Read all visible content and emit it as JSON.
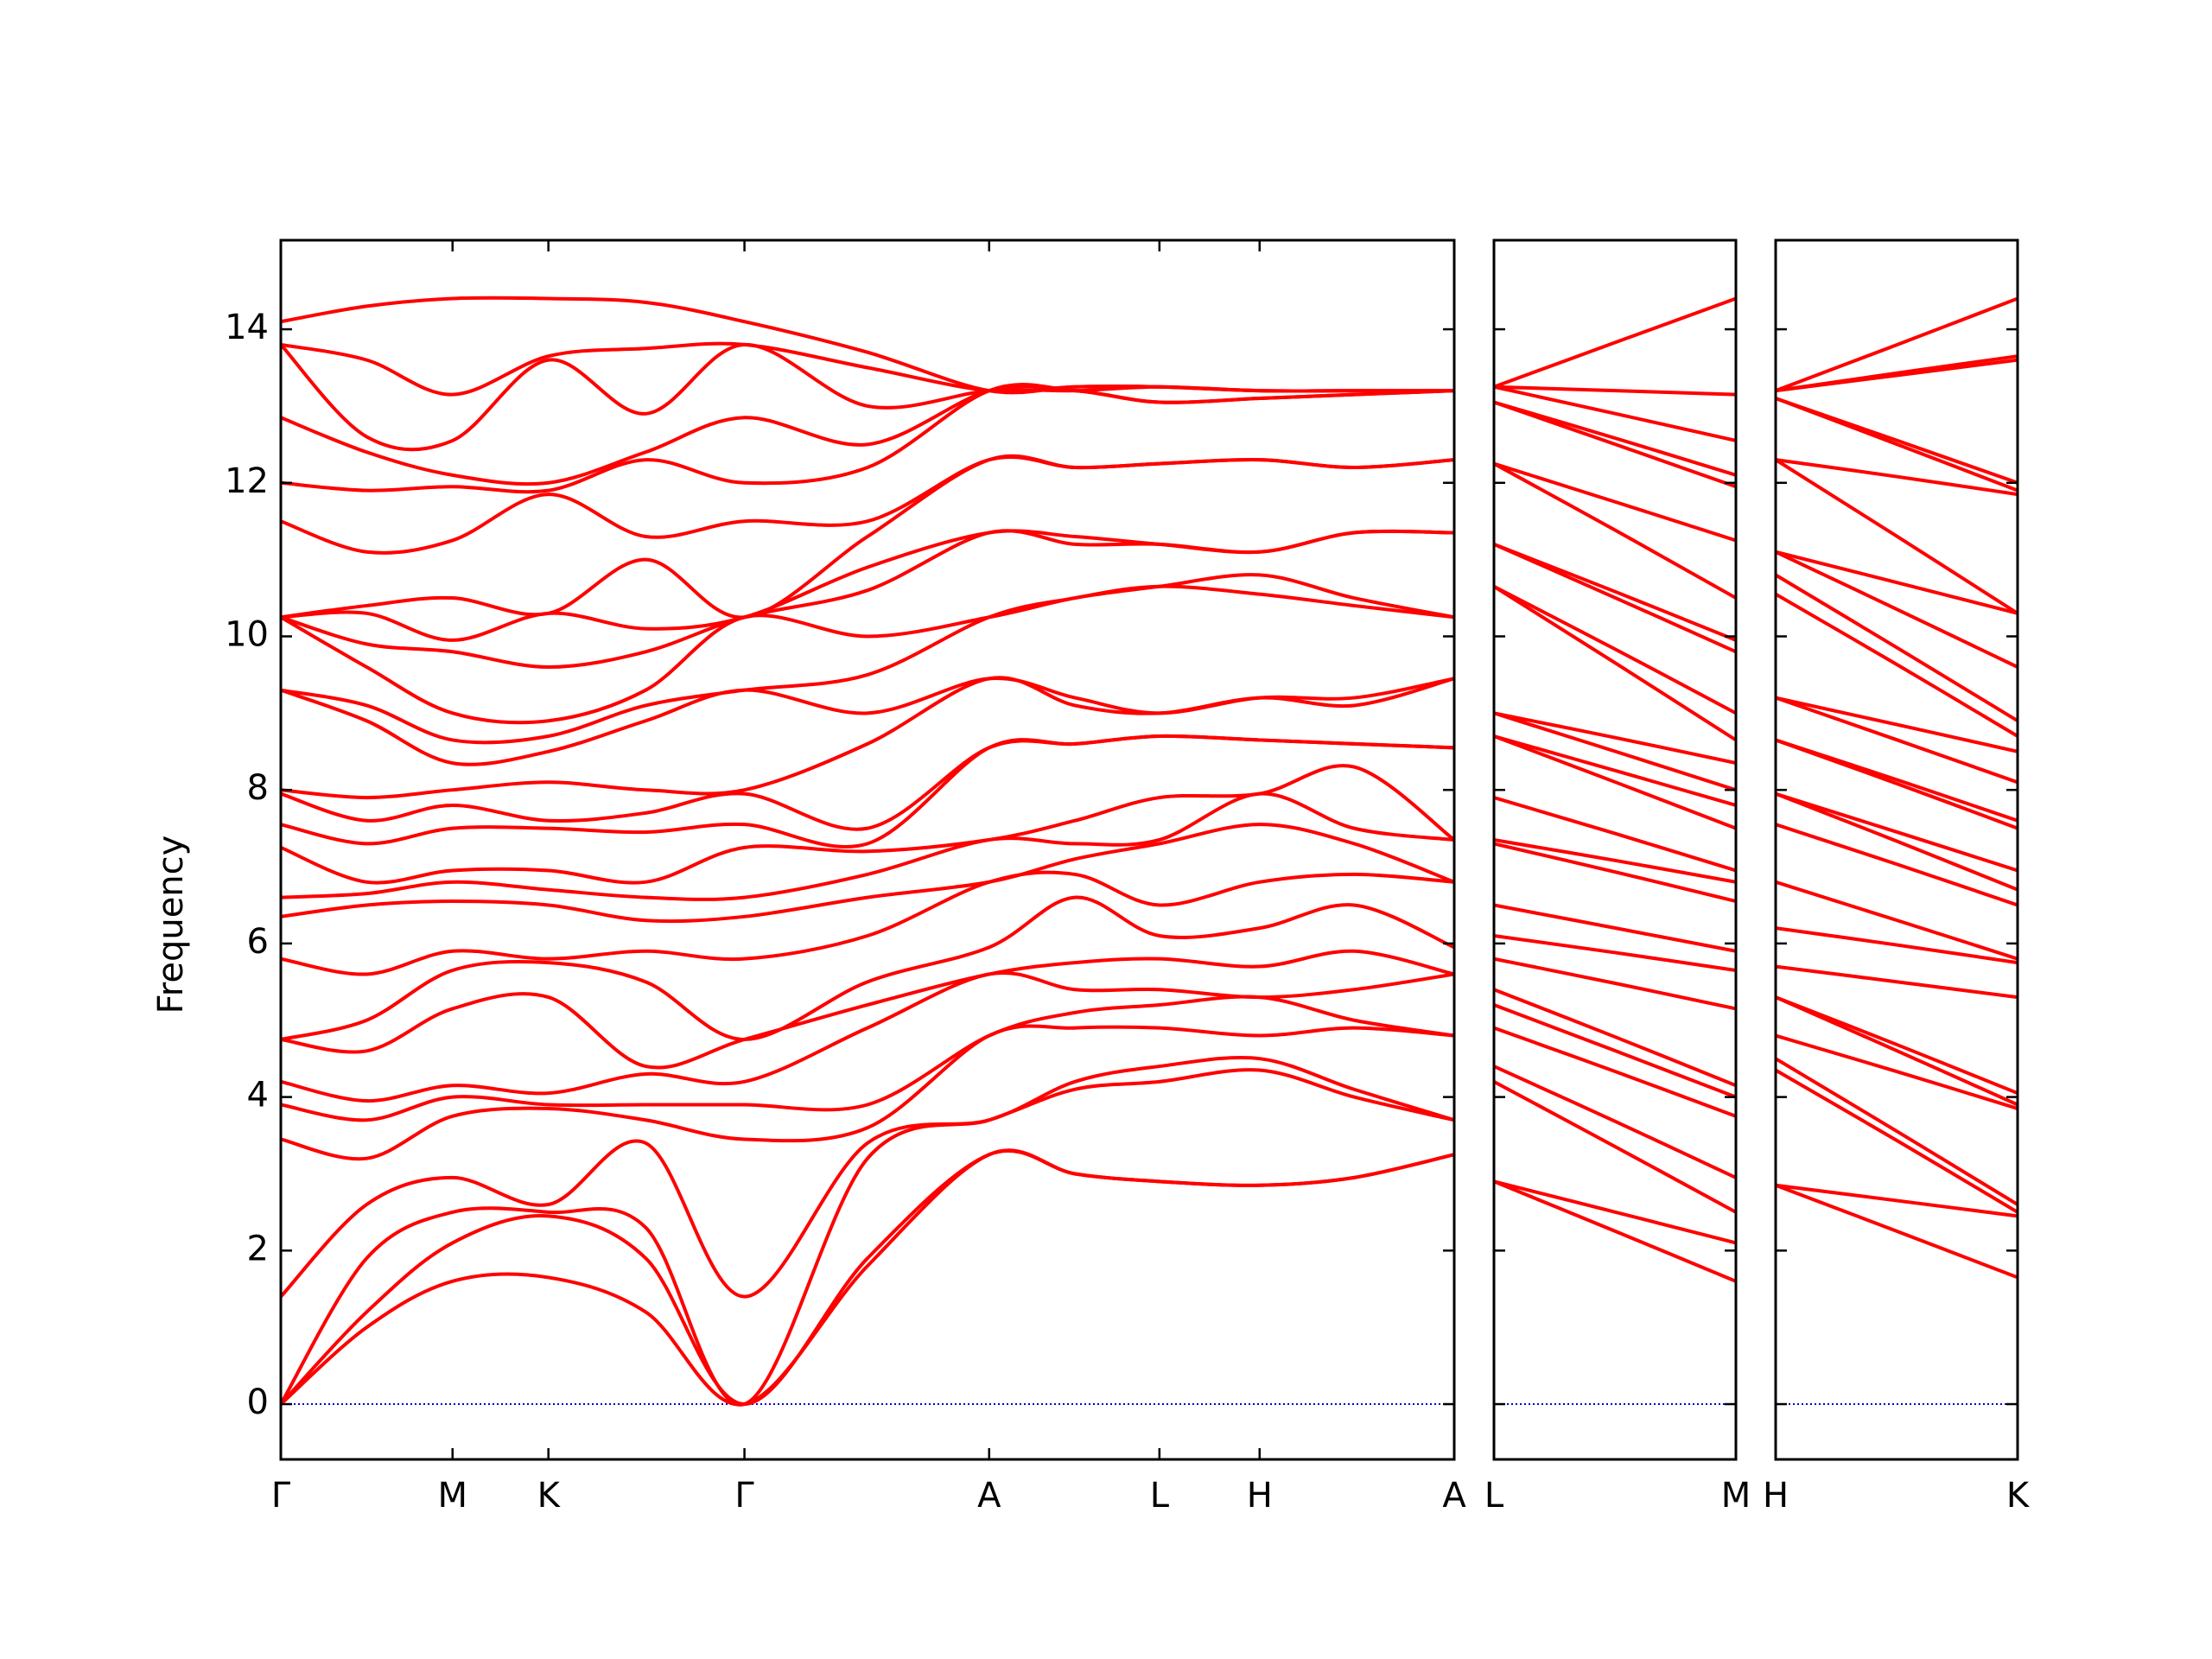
{
  "chart_data": [
    {
      "type": "line",
      "y_label": "Frequency",
      "color": "#ff0000",
      "zero_line_color": "#0000cc",
      "xlim": [
        0,
        8.2
      ],
      "xticks": [
        {
          "value": 0,
          "label": "Γ"
        },
        {
          "value": 1.2,
          "label": "M"
        },
        {
          "value": 1.87,
          "label": "K"
        },
        {
          "value": 3.24,
          "label": "Γ"
        },
        {
          "value": 4.95,
          "label": "A"
        },
        {
          "value": 6.14,
          "label": "L"
        },
        {
          "value": 6.84,
          "label": "H"
        },
        {
          "value": 8.2,
          "label": "A"
        }
      ],
      "ylim": [
        -0.72,
        15.16
      ],
      "yticks": [
        0,
        2,
        4,
        6,
        8,
        10,
        12,
        14
      ],
      "x": [
        0,
        0.6,
        1.2,
        1.87,
        2.55,
        3.24,
        4.1,
        4.95,
        5.55,
        6.14,
        6.84,
        7.5,
        8.2
      ],
      "frequencies": [
        [
          0,
          0,
          0,
          1.4,
          3.45,
          3.9,
          4.2,
          4.75,
          4.75,
          5.8,
          6.35,
          6.6,
          7.25,
          7.55,
          7.95,
          8.0,
          9.3,
          9.3,
          10.25,
          10.25,
          10.25,
          10.25,
          11.5,
          12.0,
          12.85,
          13.8,
          13.8,
          14.1
        ],
        [
          1.0,
          1.2,
          1.9,
          2.6,
          3.2,
          3.7,
          3.95,
          4.6,
          5.0,
          5.6,
          6.5,
          6.65,
          6.8,
          7.3,
          7.6,
          7.9,
          8.9,
          9.1,
          9.6,
          9.9,
          10.3,
          10.4,
          11.1,
          11.9,
          12.4,
          12.6,
          13.6,
          14.3
        ],
        [
          1.6,
          2.1,
          2.5,
          2.95,
          3.75,
          4.0,
          4.15,
          5.15,
          5.65,
          5.9,
          6.55,
          6.8,
          6.95,
          7.5,
          7.8,
          8.0,
          8.35,
          8.65,
          9.0,
          9.8,
          9.95,
          10.5,
          11.25,
          11.95,
          12.1,
          12.55,
          13.15,
          14.4
        ],
        [
          1.65,
          2.45,
          2.5,
          2.6,
          3.85,
          3.9,
          4.05,
          5.3,
          5.75,
          5.8,
          6.5,
          6.7,
          6.95,
          7.5,
          7.6,
          8.1,
          8.5,
          8.7,
          8.9,
          9.6,
          10.3,
          10.3,
          11.85,
          11.9,
          12.0,
          13.6,
          13.65,
          14.4
        ],
        [
          1.2,
          1.9,
          2.3,
          3.4,
          3.7,
          3.9,
          4.3,
          4.4,
          5.5,
          5.9,
          6.3,
          6.6,
          6.8,
          7.45,
          7.7,
          8.0,
          8.9,
          9.1,
          9.3,
          9.8,
          10.1,
          11.0,
          11.3,
          12.3,
          12.4,
          12.9,
          13.75,
          14.35
        ],
        [
          0,
          0,
          0,
          1.4,
          3.45,
          3.9,
          4.2,
          4.75,
          4.75,
          5.8,
          6.35,
          6.6,
          7.25,
          7.55,
          7.95,
          8.0,
          9.3,
          9.3,
          10.25,
          10.25,
          10.25,
          10.25,
          11.5,
          12.0,
          12.85,
          13.8,
          13.8,
          14.1
        ],
        [
          1.8,
          1.9,
          3.2,
          3.4,
          3.6,
          3.9,
          4.9,
          5.2,
          5.5,
          6.1,
          6.6,
          6.9,
          7.2,
          7.3,
          7.5,
          8.6,
          9.0,
          9.5,
          10.0,
          10.6,
          10.9,
          11.3,
          11.5,
          12.2,
          12.5,
          13.0,
          13.5,
          13.7
        ],
        [
          3.25,
          3.25,
          3.7,
          3.7,
          4.8,
          4.8,
          5.6,
          5.6,
          5.95,
          6.8,
          6.8,
          7.35,
          7.35,
          8.55,
          8.55,
          9.45,
          9.45,
          10.25,
          10.25,
          11.35,
          11.35,
          12.3,
          12.3,
          13.2,
          13.2,
          13.2,
          13.2,
          13.2
        ],
        [
          3.0,
          3.0,
          4.1,
          4.2,
          4.9,
          5.1,
          5.4,
          5.75,
          6.6,
          6.9,
          7.1,
          7.3,
          7.6,
          8.6,
          8.6,
          9.1,
          9.2,
          10.5,
          10.5,
          11.2,
          11.3,
          12.2,
          12.2,
          13.2,
          13.2,
          13.2,
          13.25,
          13.25
        ],
        [
          2.9,
          2.9,
          4.2,
          4.4,
          4.9,
          5.2,
          5.4,
          5.8,
          6.1,
          6.5,
          7.3,
          7.35,
          7.9,
          8.7,
          8.7,
          9.0,
          9.0,
          10.65,
          10.65,
          11.2,
          11.2,
          12.25,
          12.25,
          13.05,
          13.05,
          13.25,
          13.25,
          13.25
        ],
        [
          2.85,
          2.85,
          4.35,
          4.5,
          4.8,
          5.3,
          5.3,
          5.7,
          6.2,
          6.8,
          7.55,
          7.95,
          7.95,
          8.65,
          8.65,
          9.2,
          9.2,
          10.55,
          10.8,
          11.1,
          11.1,
          12.3,
          12.3,
          13.1,
          13.1,
          13.2,
          13.2,
          13.2
        ],
        [
          2.95,
          2.95,
          4.0,
          4.1,
          4.9,
          5.0,
          5.4,
          5.9,
          6.5,
          6.9,
          7.3,
          7.5,
          8.3,
          8.6,
          8.6,
          9.1,
          9.2,
          10.4,
          10.5,
          11.35,
          11.35,
          12.2,
          12.2,
          13.15,
          13.15,
          13.2,
          13.2,
          13.2
        ],
        [
          3.25,
          3.25,
          3.7,
          3.7,
          4.8,
          4.8,
          5.6,
          5.6,
          5.95,
          6.8,
          6.8,
          7.35,
          7.35,
          8.55,
          8.55,
          9.45,
          9.45,
          10.25,
          10.25,
          11.35,
          11.35,
          12.3,
          12.3,
          13.2,
          13.2,
          13.2,
          13.2,
          13.2
        ]
      ]
    },
    {
      "type": "line",
      "color": "#ff0000",
      "zero_line_color": "#0000cc",
      "xlim": [
        0,
        1.69
      ],
      "xticks": [
        {
          "value": 0,
          "label": "L"
        },
        {
          "value": 1.69,
          "label": "M"
        }
      ],
      "ylim": [
        -0.72,
        15.16
      ],
      "x": [
        0,
        0.85,
        1.69
      ],
      "frequencies": [
        [
          2.9,
          2.9,
          4.2,
          4.4,
          4.9,
          5.2,
          5.4,
          5.8,
          6.1,
          6.5,
          7.3,
          7.35,
          7.9,
          8.7,
          8.7,
          9.0,
          9.0,
          10.65,
          10.65,
          11.2,
          11.2,
          12.25,
          12.25,
          13.05,
          13.05,
          13.25,
          13.25,
          13.25
        ],
        [
          2.25,
          2.5,
          3.35,
          3.68,
          4.33,
          4.6,
          4.78,
          5.48,
          5.88,
          6.2,
          6.93,
          7.08,
          7.43,
          8.1,
          8.25,
          8.5,
          8.68,
          9.65,
          9.83,
          10.5,
          10.58,
          11.38,
          11.75,
          12.5,
          12.58,
          12.9,
          13.2,
          13.83
        ],
        [
          1.6,
          2.1,
          2.5,
          2.95,
          3.75,
          4.0,
          4.15,
          5.15,
          5.65,
          5.9,
          6.55,
          6.8,
          6.95,
          7.5,
          7.8,
          8.0,
          8.35,
          8.65,
          9.0,
          9.8,
          9.95,
          10.5,
          11.25,
          11.95,
          12.1,
          12.55,
          13.15,
          14.4
        ]
      ]
    },
    {
      "type": "line",
      "color": "#ff0000",
      "zero_line_color": "#0000cc",
      "xlim": [
        0,
        1.69
      ],
      "xticks": [
        {
          "value": 0,
          "label": "H"
        },
        {
          "value": 1.69,
          "label": "K"
        }
      ],
      "ylim": [
        -0.72,
        15.16
      ],
      "x": [
        0,
        0.85,
        1.69
      ],
      "frequencies": [
        [
          2.85,
          2.85,
          4.35,
          4.5,
          4.8,
          5.3,
          5.3,
          5.7,
          6.2,
          6.8,
          7.55,
          7.95,
          7.95,
          8.65,
          8.65,
          9.2,
          9.2,
          10.55,
          10.8,
          11.1,
          11.1,
          12.3,
          12.3,
          13.1,
          13.1,
          13.2,
          13.2,
          13.2
        ],
        [
          2.25,
          2.65,
          3.43,
          3.55,
          4.33,
          4.6,
          4.68,
          5.5,
          5.98,
          6.3,
          7.03,
          7.33,
          7.45,
          8.08,
          8.13,
          8.65,
          8.85,
          9.63,
          9.85,
          10.35,
          10.7,
          11.3,
          12.08,
          12.5,
          12.55,
          13.4,
          13.43,
          13.8
        ],
        [
          1.65,
          2.45,
          2.5,
          2.6,
          3.85,
          3.9,
          4.05,
          5.3,
          5.75,
          5.8,
          6.5,
          6.7,
          6.95,
          7.5,
          7.6,
          8.1,
          8.5,
          8.7,
          8.9,
          9.6,
          10.3,
          10.3,
          11.85,
          11.9,
          12.0,
          13.6,
          13.65,
          14.4
        ]
      ]
    }
  ]
}
